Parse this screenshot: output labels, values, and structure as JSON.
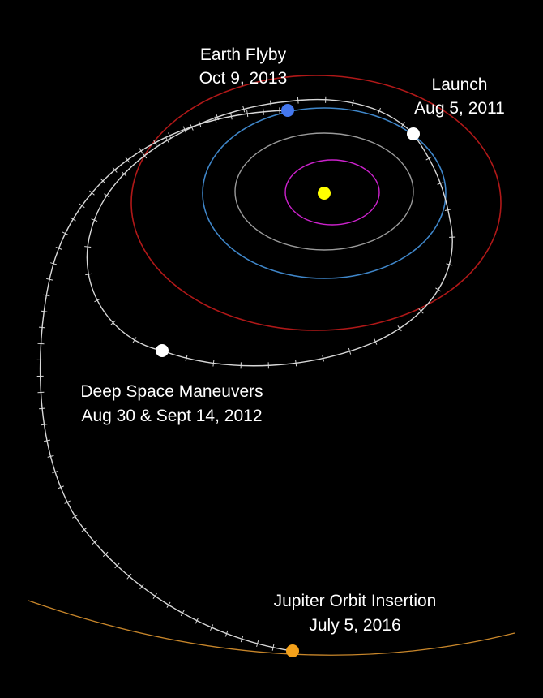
{
  "events": {
    "launch": {
      "title": "Launch",
      "date": "Aug 5, 2011"
    },
    "deep_space_maneuvers": {
      "title": "Deep Space Maneuvers",
      "date": "Aug 30 & Sept 14, 2012"
    },
    "earth_flyby": {
      "title": "Earth Flyby",
      "date": "Oct 9, 2013"
    },
    "jupiter_orbit_insertion": {
      "title": "Jupiter Orbit Insertion",
      "date": "July 5, 2016"
    }
  },
  "colors": {
    "background": "#000000",
    "sun": "#ffff00",
    "mercury_orbit": "#cc22cc",
    "venus_orbit": "#9a9a9a",
    "earth_orbit": "#3f86c9",
    "mars_orbit": "#b01818",
    "jupiter_orbit": "#c8862a",
    "trajectory": "#d8d8d8",
    "launch_marker": "#ffffff",
    "maneuver_marker": "#ffffff",
    "earth_marker": "#4477ee",
    "jupiter_marker": "#f4a11a"
  }
}
